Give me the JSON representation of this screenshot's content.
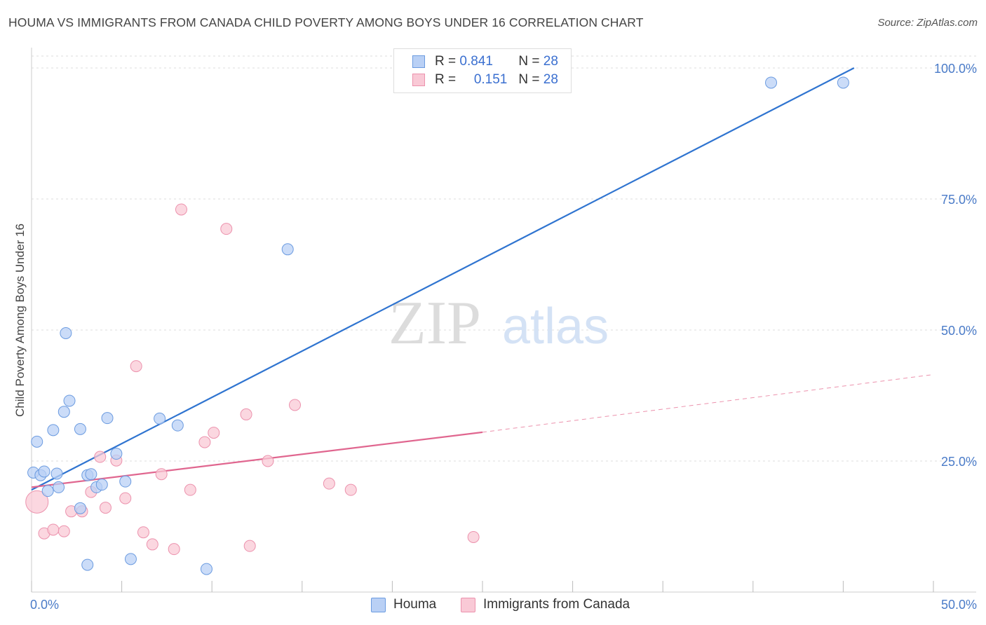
{
  "title": "HOUMA VS IMMIGRANTS FROM CANADA CHILD POVERTY AMONG BOYS UNDER 16 CORRELATION CHART",
  "source": "Source: ZipAtlas.com",
  "watermark": {
    "zip": "ZIP",
    "atlas": "atlas"
  },
  "colors": {
    "houma_fill": "#b9d0f5",
    "houma_stroke": "#6b9be0",
    "houma_line": "#2f74d0",
    "canada_fill": "#f9c9d6",
    "canada_stroke": "#ec92ad",
    "canada_line": "#e0668f",
    "grid": "#dddddd",
    "tick_label": "#4a7bc8"
  },
  "legend_top": {
    "rows": [
      {
        "r_label": "R = ",
        "r_value": "0.841",
        "n_label": "N = ",
        "n_value": "28"
      },
      {
        "r_label": "R = ",
        "r_value": "0.151",
        "n_label": "N = ",
        "n_value": "28"
      }
    ]
  },
  "legend_bottom": {
    "houma": "Houma",
    "canada": "Immigrants from Canada"
  },
  "chart_data": {
    "type": "scatter",
    "title": "HOUMA VS IMMIGRANTS FROM CANADA CHILD POVERTY AMONG BOYS UNDER 16 CORRELATION CHART",
    "xlabel": "",
    "ylabel": "Child Poverty Among Boys Under 16",
    "xlim": [
      0,
      50
    ],
    "ylim": [
      0,
      100
    ],
    "x_tick_labels": [
      "0.0%",
      "50.0%"
    ],
    "y_ticks": [
      25,
      50,
      75,
      100
    ],
    "y_tick_labels": [
      "25.0%",
      "50.0%",
      "75.0%",
      "100.0%"
    ],
    "grid": true,
    "legend": "top-center",
    "series": [
      {
        "name": "Houma",
        "R": 0.841,
        "N": 28,
        "trend": {
          "x": [
            0,
            45.6
          ],
          "y": [
            19.5,
            100
          ]
        },
        "points": [
          [
            0.1,
            22.8
          ],
          [
            0.3,
            28.7
          ],
          [
            0.5,
            22.3
          ],
          [
            0.7,
            23.0
          ],
          [
            0.9,
            19.3
          ],
          [
            1.2,
            30.9
          ],
          [
            1.4,
            22.6
          ],
          [
            1.5,
            20.0
          ],
          [
            1.8,
            34.4
          ],
          [
            1.9,
            49.4
          ],
          [
            2.1,
            36.5
          ],
          [
            2.7,
            31.1
          ],
          [
            2.7,
            16.0
          ],
          [
            3.1,
            22.3
          ],
          [
            3.1,
            5.2
          ],
          [
            3.3,
            22.5
          ],
          [
            3.6,
            20.0
          ],
          [
            3.9,
            20.5
          ],
          [
            4.2,
            33.2
          ],
          [
            4.7,
            26.4
          ],
          [
            5.2,
            21.1
          ],
          [
            5.5,
            6.3
          ],
          [
            7.1,
            33.1
          ],
          [
            8.1,
            31.8
          ],
          [
            9.7,
            4.4
          ],
          [
            14.2,
            65.4
          ],
          [
            41.0,
            97.2
          ],
          [
            45.0,
            97.2
          ]
        ]
      },
      {
        "name": "Immigrants from Canada",
        "R": 0.151,
        "N": 28,
        "trend": {
          "x": [
            0,
            25
          ],
          "y": [
            20,
            30.5
          ]
        },
        "trend_dashed": {
          "x": [
            25,
            50
          ],
          "y": [
            30.5,
            41.5
          ]
        },
        "points": [
          [
            0.3,
            17.2
          ],
          [
            0.7,
            11.2
          ],
          [
            1.2,
            11.9
          ],
          [
            1.8,
            11.6
          ],
          [
            2.2,
            15.4
          ],
          [
            2.8,
            15.4
          ],
          [
            3.3,
            19.1
          ],
          [
            3.8,
            25.8
          ],
          [
            4.1,
            16.1
          ],
          [
            4.7,
            25.1
          ],
          [
            5.2,
            17.9
          ],
          [
            5.8,
            43.1
          ],
          [
            6.2,
            11.4
          ],
          [
            6.7,
            9.1
          ],
          [
            7.2,
            22.5
          ],
          [
            7.9,
            8.2
          ],
          [
            8.3,
            73.0
          ],
          [
            8.8,
            19.5
          ],
          [
            9.6,
            28.6
          ],
          [
            10.1,
            30.4
          ],
          [
            10.8,
            69.3
          ],
          [
            11.9,
            33.9
          ],
          [
            12.1,
            8.8
          ],
          [
            13.1,
            25.0
          ],
          [
            14.6,
            35.7
          ],
          [
            16.5,
            20.7
          ],
          [
            17.7,
            19.5
          ],
          [
            24.5,
            10.5
          ]
        ]
      }
    ]
  }
}
